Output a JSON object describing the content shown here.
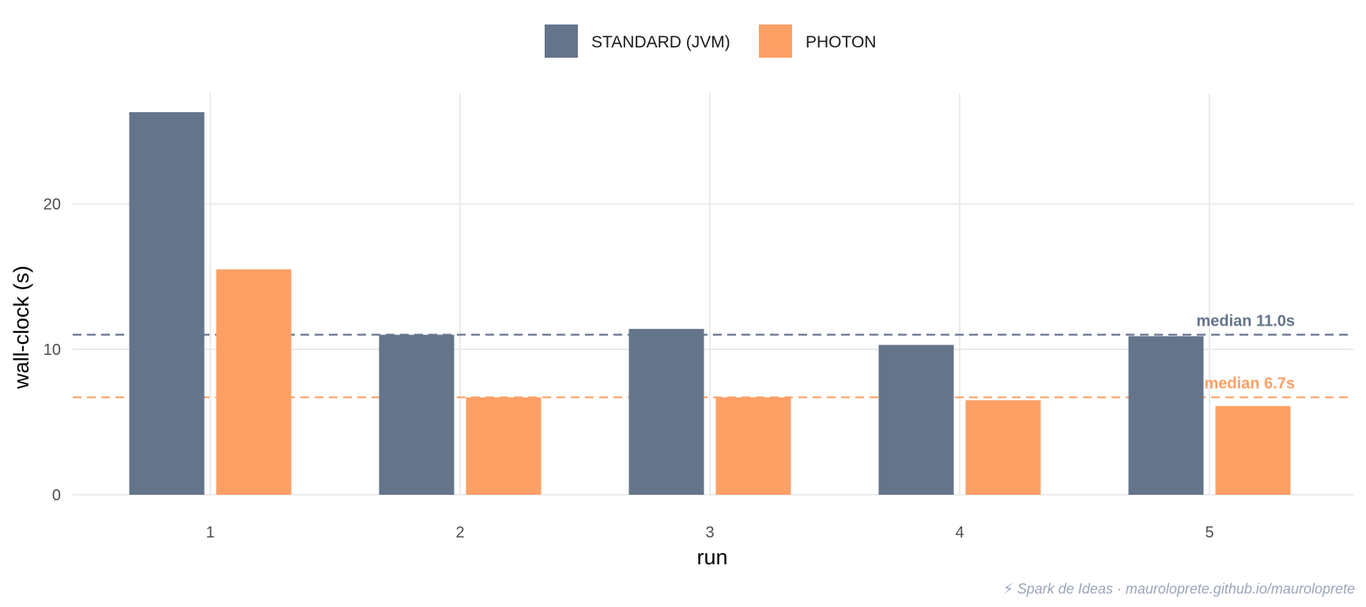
{
  "chart_data": {
    "type": "bar",
    "categories": [
      "1",
      "2",
      "3",
      "4",
      "5"
    ],
    "series": [
      {
        "name": "STANDARD (JVM)",
        "color": "#64748b",
        "values": [
          26.3,
          11.0,
          11.4,
          10.3,
          10.9
        ]
      },
      {
        "name": "PHOTON",
        "color": "#fda066",
        "values": [
          15.5,
          6.7,
          6.7,
          6.5,
          6.1
        ]
      }
    ],
    "medians": [
      {
        "series": "STANDARD (JVM)",
        "value": 11.0,
        "label": "median 11.0s",
        "color": "#64748b",
        "line": "dashed"
      },
      {
        "series": "PHOTON",
        "value": 6.7,
        "label": "median 6.7s",
        "color": "#fda066",
        "line": "dashed"
      }
    ],
    "xlabel": "run",
    "ylabel": "wall-clock (s)",
    "yticks": [
      0,
      10,
      20
    ],
    "ylim": [
      0,
      27.6
    ],
    "grid": true,
    "legend_position": "top",
    "caption": "⚡ Spark de Ideas · mauroloprete.github.io/mauroloprete"
  }
}
